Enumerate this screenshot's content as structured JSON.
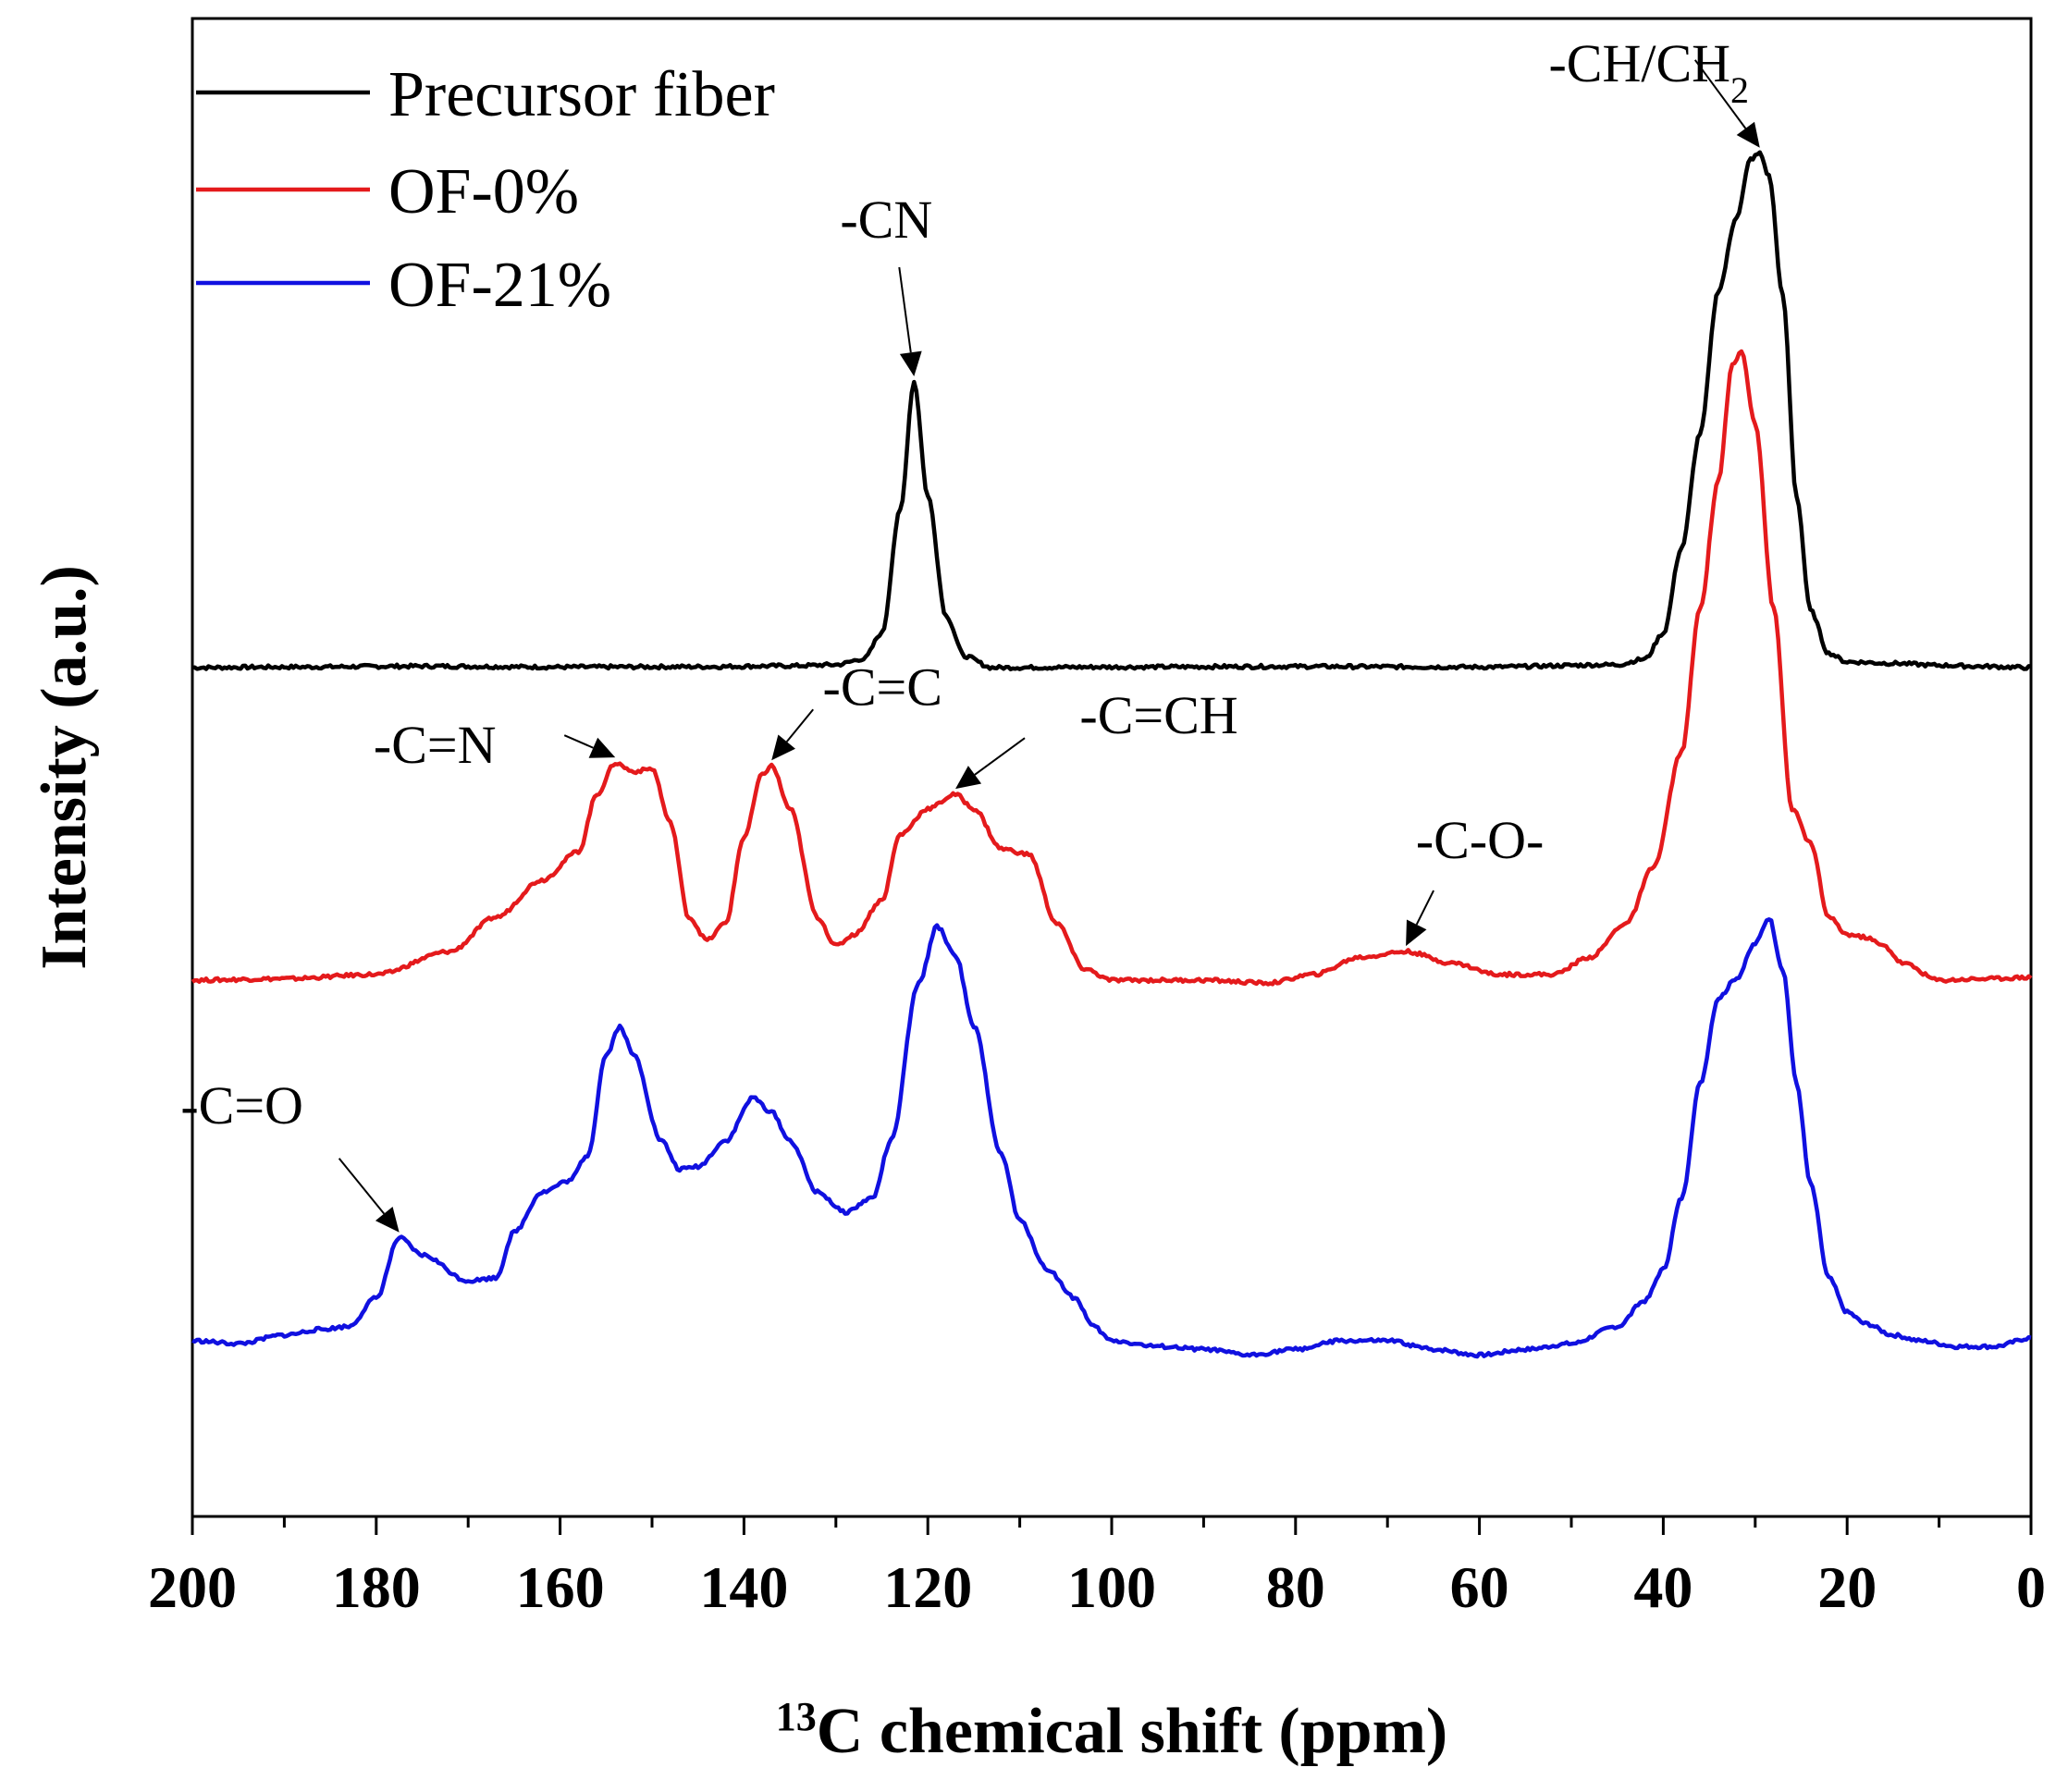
{
  "chart_data": {
    "type": "line",
    "xlabel": {
      "sup": "13",
      "main": "C chemical shift (ppm)"
    },
    "ylabel": "Intensity (a.u.)",
    "xlim": [
      200,
      0
    ],
    "x_reversed": true,
    "x_ticks": [
      200,
      180,
      160,
      140,
      120,
      100,
      80,
      60,
      40,
      20,
      0
    ],
    "x_tick_labels": [
      "200",
      "180",
      "160",
      "140",
      "120",
      "100",
      "80",
      "60",
      "40",
      "20",
      "0"
    ],
    "minor_x_step": 10,
    "y_ticks_shown": false,
    "grid": false,
    "legend": {
      "position": "top-left"
    },
    "series": [
      {
        "name": "Precursor fiber",
        "color": "#000000",
        "points": [
          [
            200,
            0.0
          ],
          [
            190,
            0.002
          ],
          [
            175,
            0.005
          ],
          [
            160,
            0.002
          ],
          [
            145,
            0.003
          ],
          [
            135,
            0.006
          ],
          [
            130,
            0.01
          ],
          [
            127,
            0.03
          ],
          [
            125,
            0.12
          ],
          [
            123,
            0.55
          ],
          [
            121.5,
            1.0
          ],
          [
            120,
            0.6
          ],
          [
            118,
            0.18
          ],
          [
            116,
            0.04
          ],
          [
            113,
            0.0
          ],
          [
            100,
            0.002
          ],
          [
            80,
            0.004
          ],
          [
            60,
            0.002
          ],
          [
            45,
            0.01
          ],
          [
            42,
            0.03
          ],
          [
            40,
            0.12
          ],
          [
            38,
            0.42
          ],
          [
            36,
            0.82
          ],
          [
            34,
            1.32
          ],
          [
            32,
            1.58
          ],
          [
            30.5,
            1.78
          ],
          [
            29.5,
            1.8
          ],
          [
            28.5,
            1.72
          ],
          [
            27,
            1.3
          ],
          [
            25.5,
            0.6
          ],
          [
            24,
            0.2
          ],
          [
            22,
            0.05
          ],
          [
            20,
            0.02
          ],
          [
            15,
            0.015
          ],
          [
            10,
            0.008
          ],
          [
            5,
            0.004
          ],
          [
            0,
            0.0
          ]
        ]
      },
      {
        "name": "OF-0%",
        "color": "#e41a1c",
        "points": [
          [
            200,
            0.0
          ],
          [
            190,
            0.005
          ],
          [
            180,
            0.02
          ],
          [
            172,
            0.1
          ],
          [
            167,
            0.22
          ],
          [
            162,
            0.35
          ],
          [
            158,
            0.45
          ],
          [
            156,
            0.65
          ],
          [
            154,
            0.76
          ],
          [
            152,
            0.73
          ],
          [
            150,
            0.74
          ],
          [
            148,
            0.55
          ],
          [
            146,
            0.22
          ],
          [
            144,
            0.14
          ],
          [
            142,
            0.2
          ],
          [
            140,
            0.5
          ],
          [
            138,
            0.72
          ],
          [
            137,
            0.75
          ],
          [
            135,
            0.6
          ],
          [
            132,
            0.22
          ],
          [
            130,
            0.12
          ],
          [
            128,
            0.16
          ],
          [
            125,
            0.28
          ],
          [
            123,
            0.51
          ],
          [
            120,
            0.6
          ],
          [
            117,
            0.65
          ],
          [
            115,
            0.6
          ],
          [
            112,
            0.46
          ],
          [
            109,
            0.44
          ],
          [
            106,
            0.2
          ],
          [
            103,
            0.04
          ],
          [
            100,
            0.0
          ],
          [
            95,
            0.0
          ],
          [
            90,
            0.0
          ],
          [
            83,
            -0.01
          ],
          [
            78,
            0.02
          ],
          [
            73,
            0.08
          ],
          [
            68,
            0.1
          ],
          [
            63,
            0.06
          ],
          [
            58,
            0.02
          ],
          [
            52,
            0.02
          ],
          [
            48,
            0.08
          ],
          [
            44,
            0.2
          ],
          [
            41,
            0.4
          ],
          [
            38,
            0.8
          ],
          [
            36,
            1.3
          ],
          [
            34,
            1.75
          ],
          [
            32.5,
            2.15
          ],
          [
            31.5,
            2.2
          ],
          [
            30,
            1.95
          ],
          [
            28,
            1.3
          ],
          [
            26,
            0.6
          ],
          [
            24,
            0.48
          ],
          [
            22,
            0.22
          ],
          [
            20,
            0.16
          ],
          [
            18,
            0.15
          ],
          [
            16,
            0.12
          ],
          [
            14,
            0.06
          ],
          [
            10,
            0.0
          ],
          [
            5,
            0.005
          ],
          [
            0,
            0.01
          ]
        ]
      },
      {
        "name": "OF-21%",
        "color": "#1010e0",
        "points": [
          [
            200,
            0.0
          ],
          [
            195,
            -0.01
          ],
          [
            190,
            0.02
          ],
          [
            186,
            0.04
          ],
          [
            183,
            0.05
          ],
          [
            180,
            0.15
          ],
          [
            177.5,
            0.36
          ],
          [
            175,
            0.3
          ],
          [
            170,
            0.21
          ],
          [
            167,
            0.22
          ],
          [
            165,
            0.38
          ],
          [
            162,
            0.52
          ],
          [
            159,
            0.56
          ],
          [
            157,
            0.65
          ],
          [
            155,
            1.0
          ],
          [
            153.5,
            1.1
          ],
          [
            152,
            1.0
          ],
          [
            149,
            0.7
          ],
          [
            147,
            0.6
          ],
          [
            145,
            0.61
          ],
          [
            142,
            0.7
          ],
          [
            139,
            0.85
          ],
          [
            137,
            0.8
          ],
          [
            135,
            0.7
          ],
          [
            132,
            0.52
          ],
          [
            129,
            0.45
          ],
          [
            126,
            0.5
          ],
          [
            124,
            0.7
          ],
          [
            121,
            1.25
          ],
          [
            119,
            1.45
          ],
          [
            117,
            1.35
          ],
          [
            115,
            1.1
          ],
          [
            112,
            0.65
          ],
          [
            110,
            0.42
          ],
          [
            107,
            0.25
          ],
          [
            104,
            0.15
          ],
          [
            102,
            0.05
          ],
          [
            100,
            0.0
          ],
          [
            95,
            -0.02
          ],
          [
            90,
            -0.03
          ],
          [
            85,
            -0.05
          ],
          [
            80,
            -0.03
          ],
          [
            75,
            0.0
          ],
          [
            70,
            0.0
          ],
          [
            65,
            -0.03
          ],
          [
            60,
            -0.05
          ],
          [
            55,
            -0.03
          ],
          [
            50,
            -0.01
          ],
          [
            45,
            0.05
          ],
          [
            42,
            0.14
          ],
          [
            40,
            0.25
          ],
          [
            38,
            0.5
          ],
          [
            36,
            0.9
          ],
          [
            34,
            1.2
          ],
          [
            32,
            1.27
          ],
          [
            30,
            1.39
          ],
          [
            28.5,
            1.48
          ],
          [
            27,
            1.3
          ],
          [
            25.5,
            0.9
          ],
          [
            24,
            0.55
          ],
          [
            22,
            0.22
          ],
          [
            20,
            0.1
          ],
          [
            18,
            0.06
          ],
          [
            15,
            0.02
          ],
          [
            12,
            0.0
          ],
          [
            8,
            -0.02
          ],
          [
            4,
            -0.02
          ],
          [
            0,
            0.01
          ]
        ]
      }
    ],
    "annotations": [
      {
        "text": "-CN",
        "x": 121.5,
        "series": "Precursor fiber"
      },
      {
        "text": "-CH/CH",
        "sub": "2",
        "x": 29.5,
        "series": "Precursor fiber"
      },
      {
        "text": "-C=N",
        "x": 154,
        "series": "OF-0%"
      },
      {
        "text": "-C=C",
        "x": 137,
        "series": "OF-0%"
      },
      {
        "text": "-C=CH",
        "x": 117,
        "series": "OF-0%"
      },
      {
        "text": "-C-O-",
        "x": 68,
        "series": "OF-0%"
      },
      {
        "text": "-C=O",
        "x": 177.5,
        "series": "OF-21%"
      }
    ]
  }
}
